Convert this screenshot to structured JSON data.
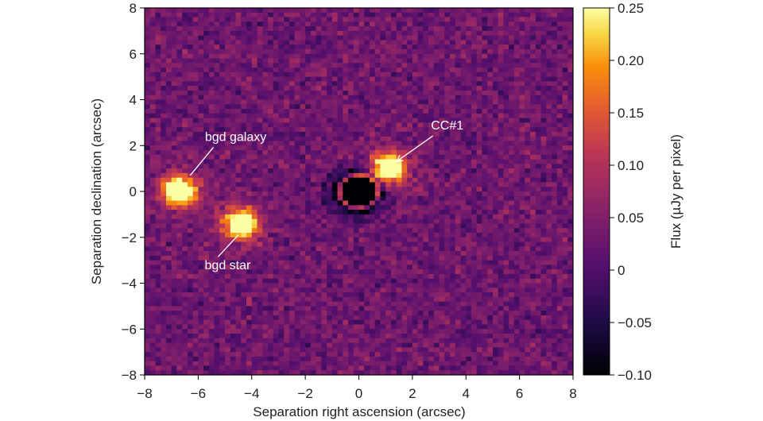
{
  "chart_data": {
    "type": "heatmap",
    "title": "",
    "xlabel": "Separation right ascension (arcsec)",
    "ylabel": "Separation declination (arcsec)",
    "xlim": [
      -8,
      8
    ],
    "ylim": [
      -8,
      8
    ],
    "xticks": [
      -8,
      -6,
      -4,
      -2,
      0,
      2,
      4,
      6,
      8
    ],
    "yticks": [
      -8,
      -6,
      -4,
      -2,
      0,
      2,
      4,
      6,
      8
    ],
    "xtick_labels": [
      "−8",
      "−6",
      "−4",
      "−2",
      "0",
      "2",
      "4",
      "6",
      "8"
    ],
    "ytick_labels": [
      "−8",
      "−6",
      "−4",
      "−2",
      "0",
      "2",
      "4",
      "6",
      "8"
    ],
    "colorbar": {
      "label": "Flux (µJy per pixel)",
      "range": [
        -0.1,
        0.25
      ],
      "ticks": [
        -0.1,
        -0.05,
        0,
        0.05,
        0.1,
        0.15,
        0.2,
        0.25
      ],
      "tick_labels": [
        "−0.10",
        "−0.05",
        "0",
        "0.05",
        "0.10",
        "0.15",
        "0.20",
        "0.25"
      ],
      "colormap": "inferno"
    },
    "grid": false,
    "background_flux": 0.03,
    "sources": [
      {
        "name": "CC#1",
        "ra": 1.1,
        "dec": 1.0,
        "peak_flux": 0.25
      },
      {
        "name": "bgd galaxy",
        "ra": -6.7,
        "dec": 0.0,
        "peak_flux": 0.25
      },
      {
        "name": "bgd star",
        "ra": -4.4,
        "dec": -1.4,
        "peak_flux": 0.22
      }
    ],
    "central_mask": {
      "ra": 0.0,
      "dec": 0.0,
      "flux": -0.1
    },
    "annotations": [
      {
        "label": "CC#1",
        "text_ra": 3.3,
        "text_dec": 2.7,
        "target_ra": 1.4,
        "target_dec": 1.3
      },
      {
        "label": "bgd galaxy",
        "text_ra": -4.6,
        "text_dec": 2.2,
        "target_ra": -6.3,
        "target_dec": 0.7
      },
      {
        "label": "bgd star",
        "text_ra": -4.9,
        "text_dec": -3.4,
        "target_ra": -4.5,
        "target_dec": -1.9
      }
    ]
  }
}
